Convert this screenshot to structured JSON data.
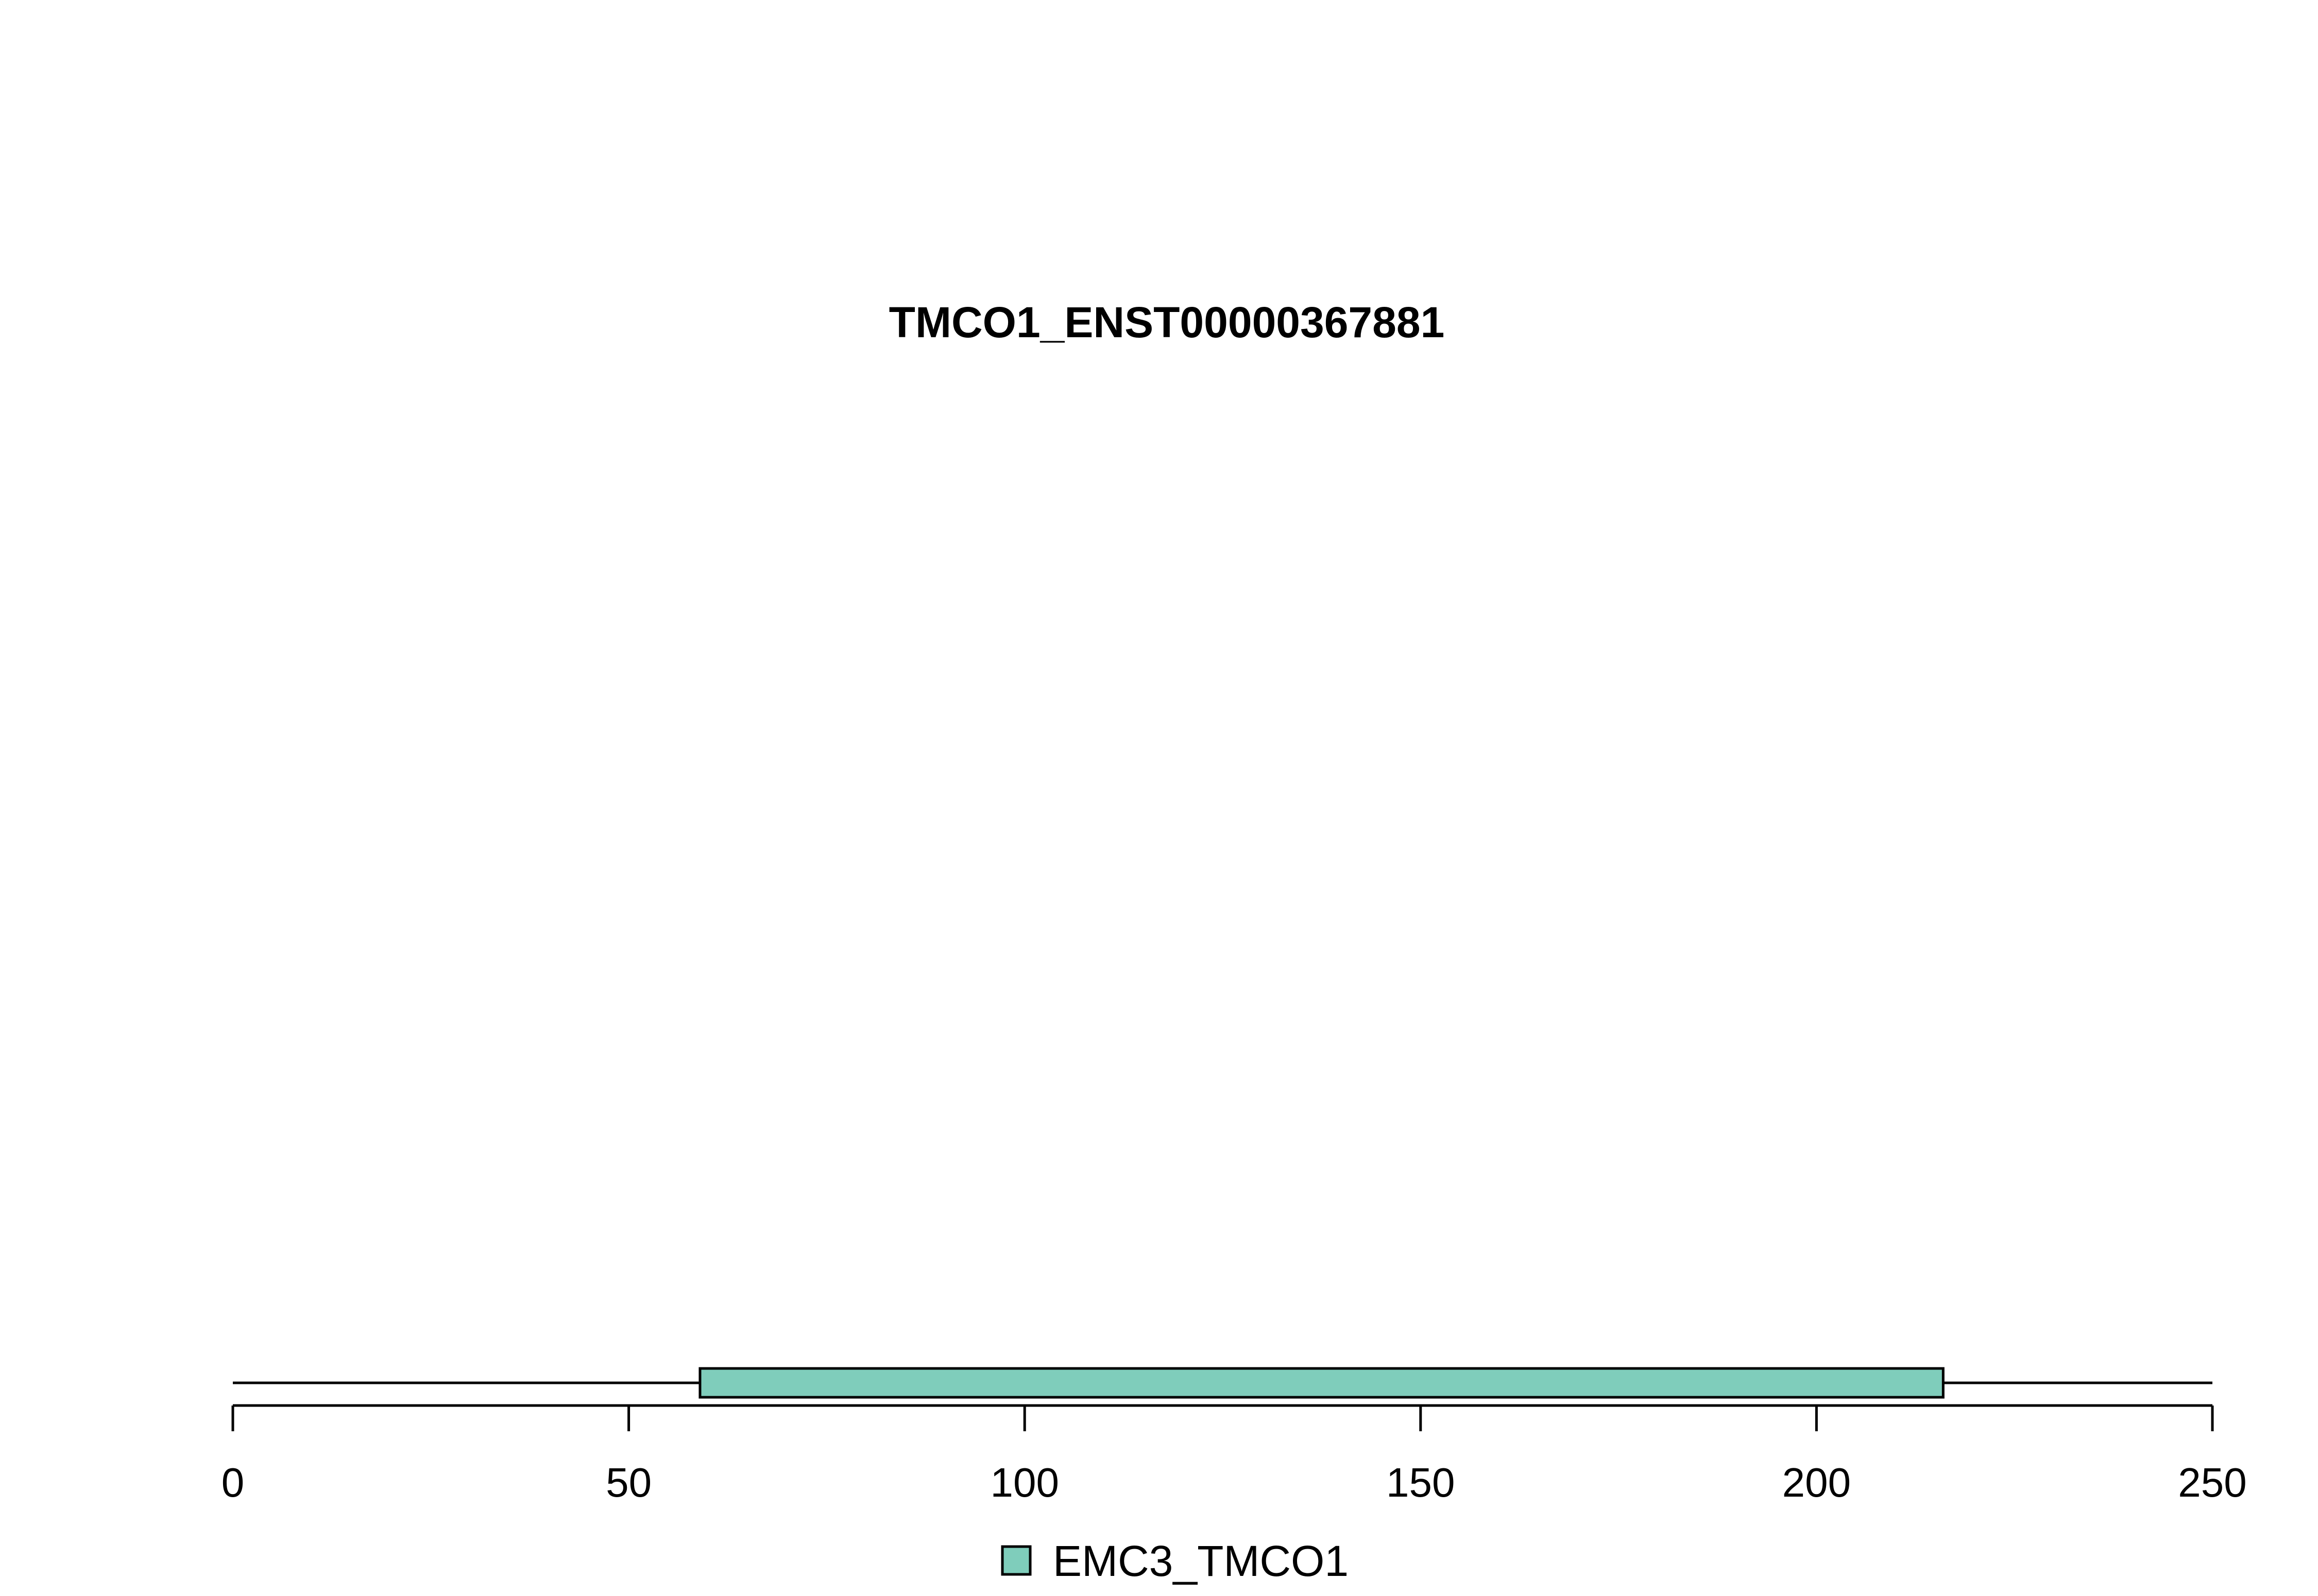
{
  "chart_data": {
    "type": "bar",
    "title": "TMCO1_ENST00000367881",
    "xlabel": "",
    "ylabel": "",
    "xlim": [
      0,
      250
    ],
    "x_ticks": [
      "0",
      "50",
      "100",
      "150",
      "200",
      "250"
    ],
    "protein_length": 250,
    "domains": [
      {
        "name": "EMC3_TMCO1",
        "start": 59,
        "end": 216,
        "color": "#7fcdbb"
      }
    ],
    "legend": {
      "position": "bottom-center",
      "entries": [
        {
          "label": "EMC3_TMCO1",
          "color": "#7fcdbb"
        }
      ]
    },
    "grid": false
  }
}
